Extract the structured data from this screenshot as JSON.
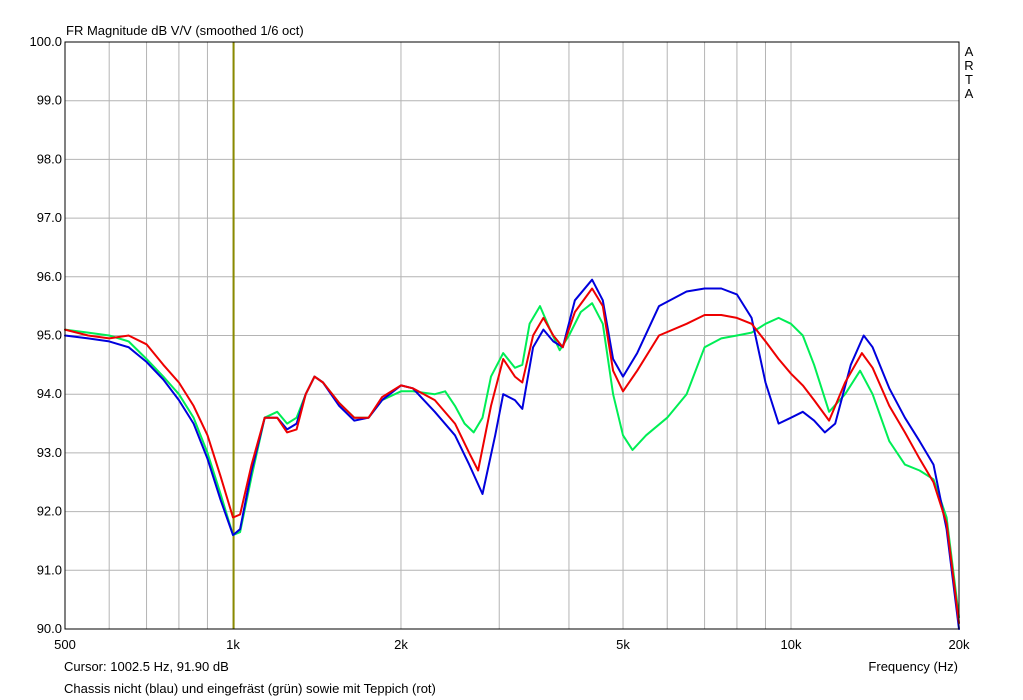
{
  "chart_data": {
    "type": "line",
    "title": "FR Magnitude dB V/V (smoothed 1/6 oct)",
    "xlabel": "Frequency (Hz)",
    "ylabel": "",
    "xscale": "log",
    "xlim": [
      500,
      20000
    ],
    "ylim": [
      90.0,
      100.0
    ],
    "grid": true,
    "side_label": [
      "A",
      "R",
      "T",
      "A"
    ],
    "cursor_text": "Cursor:  1002.5 Hz, 91.90 dB",
    "cursor_x": 1002.5,
    "caption": "Chassis nicht (blau) und eingefräst (grün) sowie mit Teppich (rot)",
    "x_ticks": [
      {
        "value": 500,
        "label": "500"
      },
      {
        "value": 1000,
        "label": "1k"
      },
      {
        "value": 2000,
        "label": "2k"
      },
      {
        "value": 5000,
        "label": "5k"
      },
      {
        "value": 10000,
        "label": "10k"
      },
      {
        "value": 20000,
        "label": "20k"
      }
    ],
    "y_ticks": [
      {
        "value": 100,
        "label": "100.0"
      },
      {
        "value": 99,
        "label": "99.0"
      },
      {
        "value": 98,
        "label": "98.0"
      },
      {
        "value": 97,
        "label": "97.0"
      },
      {
        "value": 96,
        "label": "96.0"
      },
      {
        "value": 95,
        "label": "95.0"
      },
      {
        "value": 94,
        "label": "94.0"
      },
      {
        "value": 93,
        "label": "93.0"
      },
      {
        "value": 92,
        "label": "92.0"
      },
      {
        "value": 91,
        "label": "91.0"
      },
      {
        "value": 90,
        "label": "90.0"
      }
    ],
    "series": [
      {
        "color": "#00ee55",
        "points": [
          [
            500,
            95.1
          ],
          [
            550,
            95.05
          ],
          [
            600,
            95.0
          ],
          [
            650,
            94.9
          ],
          [
            700,
            94.6
          ],
          [
            750,
            94.3
          ],
          [
            800,
            94.0
          ],
          [
            850,
            93.6
          ],
          [
            900,
            93.0
          ],
          [
            950,
            92.3
          ],
          [
            1000,
            91.6
          ],
          [
            1030,
            91.65
          ],
          [
            1080,
            92.6
          ],
          [
            1140,
            93.6
          ],
          [
            1200,
            93.7
          ],
          [
            1250,
            93.5
          ],
          [
            1300,
            93.6
          ],
          [
            1350,
            94.0
          ],
          [
            1400,
            94.3
          ],
          [
            1450,
            94.2
          ],
          [
            1550,
            93.85
          ],
          [
            1650,
            93.6
          ],
          [
            1750,
            93.6
          ],
          [
            1850,
            93.9
          ],
          [
            2000,
            94.05
          ],
          [
            2100,
            94.05
          ],
          [
            2300,
            94.0
          ],
          [
            2400,
            94.05
          ],
          [
            2500,
            93.8
          ],
          [
            2600,
            93.5
          ],
          [
            2700,
            93.35
          ],
          [
            2800,
            93.6
          ],
          [
            2900,
            94.3
          ],
          [
            3050,
            94.7
          ],
          [
            3200,
            94.45
          ],
          [
            3300,
            94.5
          ],
          [
            3400,
            95.2
          ],
          [
            3550,
            95.5
          ],
          [
            3700,
            95.1
          ],
          [
            3850,
            94.75
          ],
          [
            4000,
            95.0
          ],
          [
            4200,
            95.4
          ],
          [
            4400,
            95.55
          ],
          [
            4600,
            95.2
          ],
          [
            4800,
            94.0
          ],
          [
            5000,
            93.3
          ],
          [
            5200,
            93.05
          ],
          [
            5500,
            93.3
          ],
          [
            6000,
            93.6
          ],
          [
            6500,
            94.0
          ],
          [
            7000,
            94.8
          ],
          [
            7500,
            94.95
          ],
          [
            8000,
            95.0
          ],
          [
            8500,
            95.05
          ],
          [
            9000,
            95.2
          ],
          [
            9500,
            95.3
          ],
          [
            10000,
            95.2
          ],
          [
            10500,
            95.0
          ],
          [
            11000,
            94.5
          ],
          [
            11700,
            93.7
          ],
          [
            12500,
            94.0
          ],
          [
            13300,
            94.4
          ],
          [
            14000,
            94.0
          ],
          [
            15000,
            93.2
          ],
          [
            16000,
            92.8
          ],
          [
            17000,
            92.7
          ],
          [
            18000,
            92.55
          ],
          [
            19000,
            91.9
          ],
          [
            20000,
            90.2
          ]
        ]
      },
      {
        "color": "#0000dd",
        "points": [
          [
            500,
            95.0
          ],
          [
            550,
            94.95
          ],
          [
            600,
            94.9
          ],
          [
            650,
            94.8
          ],
          [
            700,
            94.55
          ],
          [
            750,
            94.25
          ],
          [
            800,
            93.9
          ],
          [
            850,
            93.5
          ],
          [
            900,
            92.9
          ],
          [
            950,
            92.2
          ],
          [
            1000,
            91.6
          ],
          [
            1030,
            91.7
          ],
          [
            1080,
            92.7
          ],
          [
            1140,
            93.6
          ],
          [
            1200,
            93.6
          ],
          [
            1250,
            93.4
          ],
          [
            1300,
            93.5
          ],
          [
            1350,
            94.0
          ],
          [
            1400,
            94.3
          ],
          [
            1450,
            94.2
          ],
          [
            1550,
            93.8
          ],
          [
            1650,
            93.55
          ],
          [
            1750,
            93.6
          ],
          [
            1850,
            93.9
          ],
          [
            2000,
            94.15
          ],
          [
            2100,
            94.1
          ],
          [
            2300,
            93.7
          ],
          [
            2500,
            93.3
          ],
          [
            2650,
            92.8
          ],
          [
            2800,
            92.3
          ],
          [
            2950,
            93.3
          ],
          [
            3050,
            94.0
          ],
          [
            3200,
            93.9
          ],
          [
            3300,
            93.75
          ],
          [
            3450,
            94.8
          ],
          [
            3600,
            95.1
          ],
          [
            3750,
            94.9
          ],
          [
            3900,
            94.8
          ],
          [
            4100,
            95.6
          ],
          [
            4400,
            95.95
          ],
          [
            4600,
            95.6
          ],
          [
            4800,
            94.6
          ],
          [
            5000,
            94.3
          ],
          [
            5300,
            94.7
          ],
          [
            5800,
            95.5
          ],
          [
            6500,
            95.75
          ],
          [
            7000,
            95.8
          ],
          [
            7500,
            95.8
          ],
          [
            8000,
            95.7
          ],
          [
            8500,
            95.3
          ],
          [
            9000,
            94.2
          ],
          [
            9500,
            93.5
          ],
          [
            10000,
            93.6
          ],
          [
            10500,
            93.7
          ],
          [
            11000,
            93.55
          ],
          [
            11500,
            93.35
          ],
          [
            12000,
            93.5
          ],
          [
            12800,
            94.5
          ],
          [
            13500,
            95.0
          ],
          [
            14000,
            94.8
          ],
          [
            15000,
            94.1
          ],
          [
            16000,
            93.6
          ],
          [
            17000,
            93.2
          ],
          [
            18000,
            92.8
          ],
          [
            19000,
            91.7
          ],
          [
            20000,
            90.0
          ]
        ]
      },
      {
        "color": "#ee0000",
        "points": [
          [
            500,
            95.1
          ],
          [
            550,
            95.0
          ],
          [
            600,
            94.95
          ],
          [
            650,
            95.0
          ],
          [
            700,
            94.85
          ],
          [
            750,
            94.5
          ],
          [
            800,
            94.2
          ],
          [
            850,
            93.8
          ],
          [
            900,
            93.3
          ],
          [
            950,
            92.6
          ],
          [
            1000,
            91.9
          ],
          [
            1030,
            91.95
          ],
          [
            1080,
            92.8
          ],
          [
            1140,
            93.6
          ],
          [
            1200,
            93.6
          ],
          [
            1250,
            93.35
          ],
          [
            1300,
            93.4
          ],
          [
            1350,
            94.0
          ],
          [
            1400,
            94.3
          ],
          [
            1450,
            94.2
          ],
          [
            1550,
            93.85
          ],
          [
            1650,
            93.6
          ],
          [
            1750,
            93.6
          ],
          [
            1850,
            93.95
          ],
          [
            2000,
            94.15
          ],
          [
            2100,
            94.1
          ],
          [
            2300,
            93.9
          ],
          [
            2500,
            93.5
          ],
          [
            2650,
            93.0
          ],
          [
            2750,
            92.7
          ],
          [
            2900,
            93.8
          ],
          [
            3050,
            94.6
          ],
          [
            3200,
            94.3
          ],
          [
            3300,
            94.2
          ],
          [
            3450,
            95.0
          ],
          [
            3600,
            95.3
          ],
          [
            3750,
            95.0
          ],
          [
            3900,
            94.8
          ],
          [
            4100,
            95.4
          ],
          [
            4400,
            95.8
          ],
          [
            4600,
            95.5
          ],
          [
            4800,
            94.4
          ],
          [
            5000,
            94.05
          ],
          [
            5300,
            94.4
          ],
          [
            5800,
            95.0
          ],
          [
            6500,
            95.2
          ],
          [
            7000,
            95.35
          ],
          [
            7500,
            95.35
          ],
          [
            8000,
            95.3
          ],
          [
            8500,
            95.2
          ],
          [
            9000,
            94.9
          ],
          [
            9500,
            94.6
          ],
          [
            10000,
            94.35
          ],
          [
            10500,
            94.15
          ],
          [
            11000,
            93.9
          ],
          [
            11700,
            93.55
          ],
          [
            12500,
            94.2
          ],
          [
            13400,
            94.7
          ],
          [
            14000,
            94.45
          ],
          [
            15000,
            93.8
          ],
          [
            16000,
            93.35
          ],
          [
            17000,
            92.9
          ],
          [
            18000,
            92.5
          ],
          [
            19000,
            91.8
          ],
          [
            20000,
            90.1
          ]
        ]
      }
    ]
  }
}
